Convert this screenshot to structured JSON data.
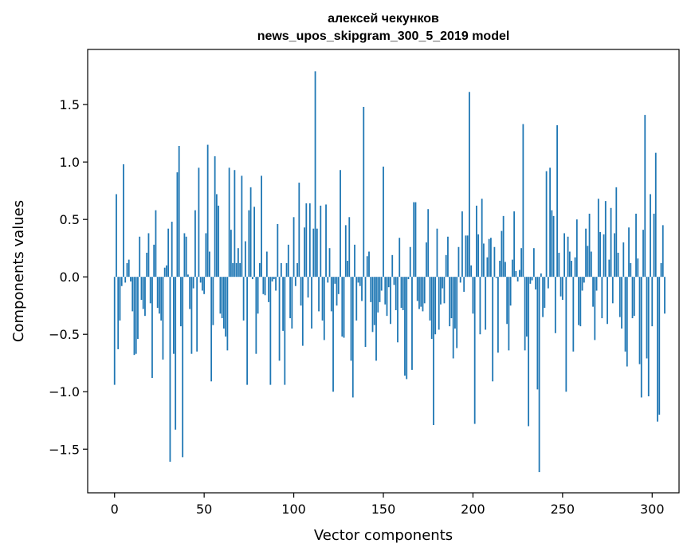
{
  "chart_data": {
    "type": "bar",
    "title": [
      "алексей чекунков",
      "news_upos_skipgram_300_5_2019 model"
    ],
    "xlabel": "Vector components",
    "ylabel": "Components values",
    "xlim": [
      -15,
      315
    ],
    "ylim": [
      -1.88,
      1.98
    ],
    "xticks": [
      0,
      50,
      100,
      150,
      200,
      250,
      300
    ],
    "yticks": [
      -1.5,
      -1.0,
      -0.5,
      0.0,
      0.5,
      1.0,
      1.5
    ],
    "ytick_labels": [
      "−1.5",
      "−1.0",
      "−0.5",
      "0.0",
      "0.5",
      "1.0",
      "1.5"
    ],
    "bar_color": "#1f77b4",
    "grid": false,
    "values": [
      -0.94,
      0.72,
      -0.63,
      -0.38,
      -0.08,
      0.98,
      -0.05,
      0.12,
      0.15,
      -0.04,
      -0.3,
      -0.68,
      -0.67,
      -0.54,
      0.35,
      -0.2,
      -0.28,
      -0.34,
      0.21,
      0.38,
      -0.23,
      -0.88,
      0.28,
      0.58,
      -0.27,
      -0.32,
      -0.38,
      -0.72,
      0.08,
      0.1,
      0.42,
      -1.61,
      0.48,
      -0.67,
      -1.33,
      0.91,
      1.14,
      -0.43,
      -1.57,
      0.38,
      0.35,
      0.02,
      -0.28,
      -0.67,
      -0.1,
      0.58,
      -0.65,
      0.95,
      -0.05,
      -0.12,
      -0.15,
      0.38,
      1.15,
      0.22,
      -0.91,
      -0.42,
      1.05,
      0.72,
      0.62,
      -0.32,
      -0.36,
      -0.45,
      -0.52,
      -0.64,
      0.95,
      0.41,
      0.12,
      0.93,
      0.12,
      0.25,
      0.12,
      0.88,
      -0.38,
      0.31,
      -0.94,
      0.58,
      0.78,
      -0.02,
      0.61,
      -0.67,
      -0.32,
      0.12,
      0.88,
      -0.15,
      -0.16,
      0.22,
      -0.22,
      -0.94,
      -0.04,
      -0.02,
      -0.12,
      0.46,
      -0.73,
      0.12,
      -0.47,
      -0.94,
      0.12,
      0.28,
      -0.36,
      -0.45,
      0.52,
      -0.08,
      0.12,
      0.82,
      -0.25,
      -0.6,
      0.43,
      0.64,
      -0.18,
      0.64,
      -0.45,
      0.42,
      1.79,
      0.42,
      -0.3,
      0.62,
      -0.38,
      -0.55,
      0.63,
      -0.05,
      0.25,
      -0.3,
      -1.0,
      -0.06,
      -0.25,
      -0.15,
      0.93,
      -0.52,
      -0.53,
      0.45,
      0.14,
      0.52,
      -0.73,
      -1.05,
      0.28,
      -0.38,
      -0.05,
      -0.08,
      -0.21,
      1.48,
      -0.61,
      0.18,
      0.22,
      -0.22,
      -0.48,
      -0.42,
      -0.73,
      -0.31,
      -0.22,
      -0.12,
      0.96,
      -0.24,
      -0.34,
      -0.09,
      -0.41,
      0.19,
      -0.07,
      -0.29,
      -0.57,
      0.34,
      -0.27,
      -0.29,
      -0.86,
      -0.89,
      -0.02,
      0.26,
      -0.81,
      0.65,
      0.65,
      -0.21,
      -0.28,
      -0.26,
      -0.3,
      -0.23,
      0.3,
      0.59,
      -0.38,
      -0.54,
      -1.29,
      -0.5,
      0.42,
      -0.46,
      -0.24,
      -0.1,
      -0.23,
      0.19,
      0.35,
      -0.43,
      -0.36,
      -0.71,
      -0.45,
      -0.62,
      0.26,
      -0.05,
      0.57,
      -0.13,
      0.36,
      0.36,
      1.61,
      0.1,
      -0.32,
      -1.28,
      0.62,
      0.37,
      -0.5,
      0.68,
      0.29,
      -0.46,
      0.17,
      0.33,
      0.34,
      -0.91,
      0.26,
      -0.01,
      -0.66,
      0.14,
      0.4,
      0.53,
      0.13,
      -0.41,
      -0.64,
      -0.25,
      0.15,
      0.57,
      0.05,
      -0.04,
      0.06,
      0.25,
      1.33,
      -0.64,
      -0.52,
      -1.3,
      -0.06,
      -0.03,
      0.25,
      -0.11,
      -0.98,
      -1.7,
      0.03,
      -0.35,
      -0.27,
      0.92,
      -0.1,
      0.95,
      0.58,
      0.53,
      -0.49,
      1.32,
      0.21,
      -0.17,
      -0.2,
      0.38,
      -1.0,
      0.35,
      0.22,
      0.14,
      -0.65,
      0.17,
      0.5,
      -0.42,
      -0.43,
      -0.12,
      -0.05,
      0.42,
      0.27,
      0.55,
      0.22,
      -0.26,
      -0.55,
      -0.12,
      0.68,
      0.39,
      -0.36,
      0.37,
      0.66,
      -0.41,
      0.15,
      0.6,
      -0.23,
      0.38,
      0.78,
      0.21,
      -0.35,
      -0.45,
      0.3,
      -0.65,
      -0.78,
      0.43,
      0.12,
      -0.36,
      -0.34,
      0.55,
      0.16,
      -0.76,
      -1.05,
      0.41,
      1.41,
      -0.71,
      -1.04,
      0.72,
      -0.43,
      0.55,
      1.08,
      -1.26,
      -1.2,
      0.12,
      0.45,
      -0.32
    ]
  }
}
